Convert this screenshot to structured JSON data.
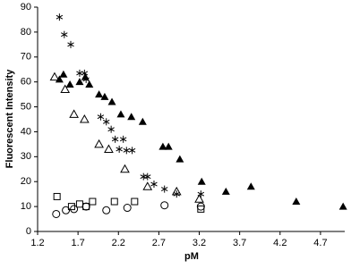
{
  "chart_data": {
    "type": "scatter",
    "xlabel": "pM",
    "ylabel": "Fluorescent Intensity",
    "xlim": [
      1.2,
      5.0
    ],
    "ylim": [
      0,
      90
    ],
    "xticks": [
      1.2,
      1.7,
      2.2,
      2.7,
      3.2,
      3.7,
      4.2,
      4.7
    ],
    "yticks": [
      0,
      10,
      20,
      30,
      40,
      50,
      60,
      70,
      80,
      90
    ],
    "series": [
      {
        "marker": "asterisk",
        "color": "#000000",
        "x": [
          1.47,
          1.53,
          1.61,
          1.72,
          1.78,
          1.8,
          1.98,
          2.05,
          2.11,
          2.16,
          2.21,
          2.26,
          2.3,
          2.37,
          2.51,
          2.56,
          2.64,
          2.77,
          2.92,
          3.22
        ],
        "values": [
          86,
          79,
          75,
          63.5,
          63.5,
          61,
          46,
          44,
          41,
          37,
          33,
          37,
          32.5,
          32.5,
          22,
          22,
          19,
          17,
          15,
          15
        ]
      },
      {
        "marker": "triangle-filled",
        "color": "#000000",
        "x": [
          1.47,
          1.52,
          1.6,
          1.72,
          1.79,
          1.84,
          1.96,
          2.03,
          2.12,
          2.23,
          2.36,
          2.5,
          2.75,
          2.82,
          2.96,
          3.23,
          3.53,
          3.84,
          4.4,
          4.98
        ],
        "values": [
          61,
          63,
          59,
          60,
          62,
          59,
          55,
          54,
          52,
          47,
          46,
          44,
          34,
          34,
          29,
          20,
          16,
          18,
          12,
          10
        ]
      },
      {
        "marker": "triangle-open",
        "color": "#000000",
        "x": [
          1.41,
          1.54,
          1.65,
          1.78,
          1.96,
          2.08,
          2.28,
          2.56,
          2.92,
          3.2
        ],
        "values": [
          62,
          57,
          47,
          45,
          35,
          33,
          25,
          18,
          16,
          13
        ]
      },
      {
        "marker": "square-open",
        "color": "#000000",
        "x": [
          1.44,
          1.62,
          1.72,
          1.8,
          1.88,
          2.15,
          2.4,
          3.22
        ],
        "values": [
          14,
          10,
          11,
          10,
          12,
          12,
          12,
          9
        ]
      },
      {
        "marker": "circle-open",
        "color": "#000000",
        "x": [
          1.43,
          1.55,
          1.65,
          1.8,
          2.05,
          2.31,
          2.77,
          3.22
        ],
        "values": [
          7,
          8.5,
          9,
          10,
          8.5,
          9.5,
          10.5,
          10
        ]
      }
    ]
  }
}
